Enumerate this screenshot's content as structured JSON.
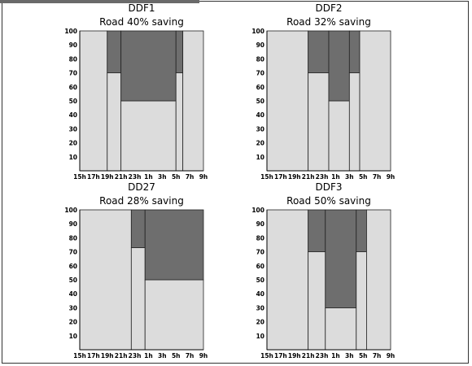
{
  "chart_data": [
    {
      "type": "bar",
      "title": "DDF1",
      "subtitle": "Road 40% saving",
      "ylim": [
        0,
        100
      ],
      "yticks": [
        "10",
        "20",
        "30",
        "40",
        "50",
        "60",
        "70",
        "80",
        "90",
        "100"
      ],
      "xticks": [
        "15h",
        "17h",
        "19h",
        "21h",
        "23h",
        "1h",
        "3h",
        "5h",
        "7h",
        "9h"
      ],
      "segments": [
        {
          "start": 15,
          "end": 19,
          "light": 100,
          "dark": 0
        },
        {
          "start": 19,
          "end": 21,
          "light": 70,
          "dark": 30
        },
        {
          "start": 21,
          "end": 29,
          "light": 50,
          "dark": 50
        },
        {
          "start": 29,
          "end": 30,
          "light": 70,
          "dark": 30
        },
        {
          "start": 30,
          "end": 33,
          "light": 100,
          "dark": 0
        }
      ]
    },
    {
      "type": "bar",
      "title": "DDF2",
      "subtitle": "Road 32% saving",
      "ylim": [
        0,
        100
      ],
      "yticks": [
        "10",
        "20",
        "30",
        "40",
        "50",
        "60",
        "70",
        "80",
        "90",
        "100"
      ],
      "xticks": [
        "15h",
        "17h",
        "19h",
        "21h",
        "23h",
        "1h",
        "3h",
        "5h",
        "7h",
        "9h"
      ],
      "segments": [
        {
          "start": 15,
          "end": 21,
          "light": 100,
          "dark": 0
        },
        {
          "start": 21,
          "end": 24,
          "light": 70,
          "dark": 30
        },
        {
          "start": 24,
          "end": 27,
          "light": 50,
          "dark": 50
        },
        {
          "start": 27,
          "end": 28.5,
          "light": 70,
          "dark": 30
        },
        {
          "start": 28.5,
          "end": 33,
          "light": 100,
          "dark": 0
        }
      ]
    },
    {
      "type": "bar",
      "title": "DD27",
      "subtitle": "Road 28% saving",
      "ylim": [
        0,
        100
      ],
      "yticks": [
        "10",
        "20",
        "30",
        "40",
        "50",
        "60",
        "70",
        "80",
        "90",
        "100"
      ],
      "xticks": [
        "15h",
        "17h",
        "19h",
        "21h",
        "23h",
        "1h",
        "3h",
        "5h",
        "7h",
        "9h"
      ],
      "segments": [
        {
          "start": 15,
          "end": 22.5,
          "light": 100,
          "dark": 0
        },
        {
          "start": 22.5,
          "end": 24.5,
          "light": 73,
          "dark": 27
        },
        {
          "start": 24.5,
          "end": 33,
          "light": 50,
          "dark": 50
        }
      ]
    },
    {
      "type": "bar",
      "title": "DDF3",
      "subtitle": "Road 50% saving",
      "ylim": [
        0,
        100
      ],
      "yticks": [
        "10",
        "20",
        "30",
        "40",
        "50",
        "60",
        "70",
        "80",
        "90",
        "100"
      ],
      "xticks": [
        "15h",
        "17h",
        "19h",
        "21h",
        "23h",
        "1h",
        "3h",
        "5h",
        "7h",
        "9h"
      ],
      "segments": [
        {
          "start": 15,
          "end": 21,
          "light": 100,
          "dark": 0
        },
        {
          "start": 21,
          "end": 23.5,
          "light": 70,
          "dark": 30
        },
        {
          "start": 23.5,
          "end": 28,
          "light": 30,
          "dark": 70
        },
        {
          "start": 28,
          "end": 29.5,
          "light": 70,
          "dark": 30
        },
        {
          "start": 29.5,
          "end": 33,
          "light": 100,
          "dark": 0
        }
      ]
    }
  ],
  "colors": {
    "light": "#dcdcdc",
    "dark": "#6e6e6e",
    "border": "#222222"
  }
}
